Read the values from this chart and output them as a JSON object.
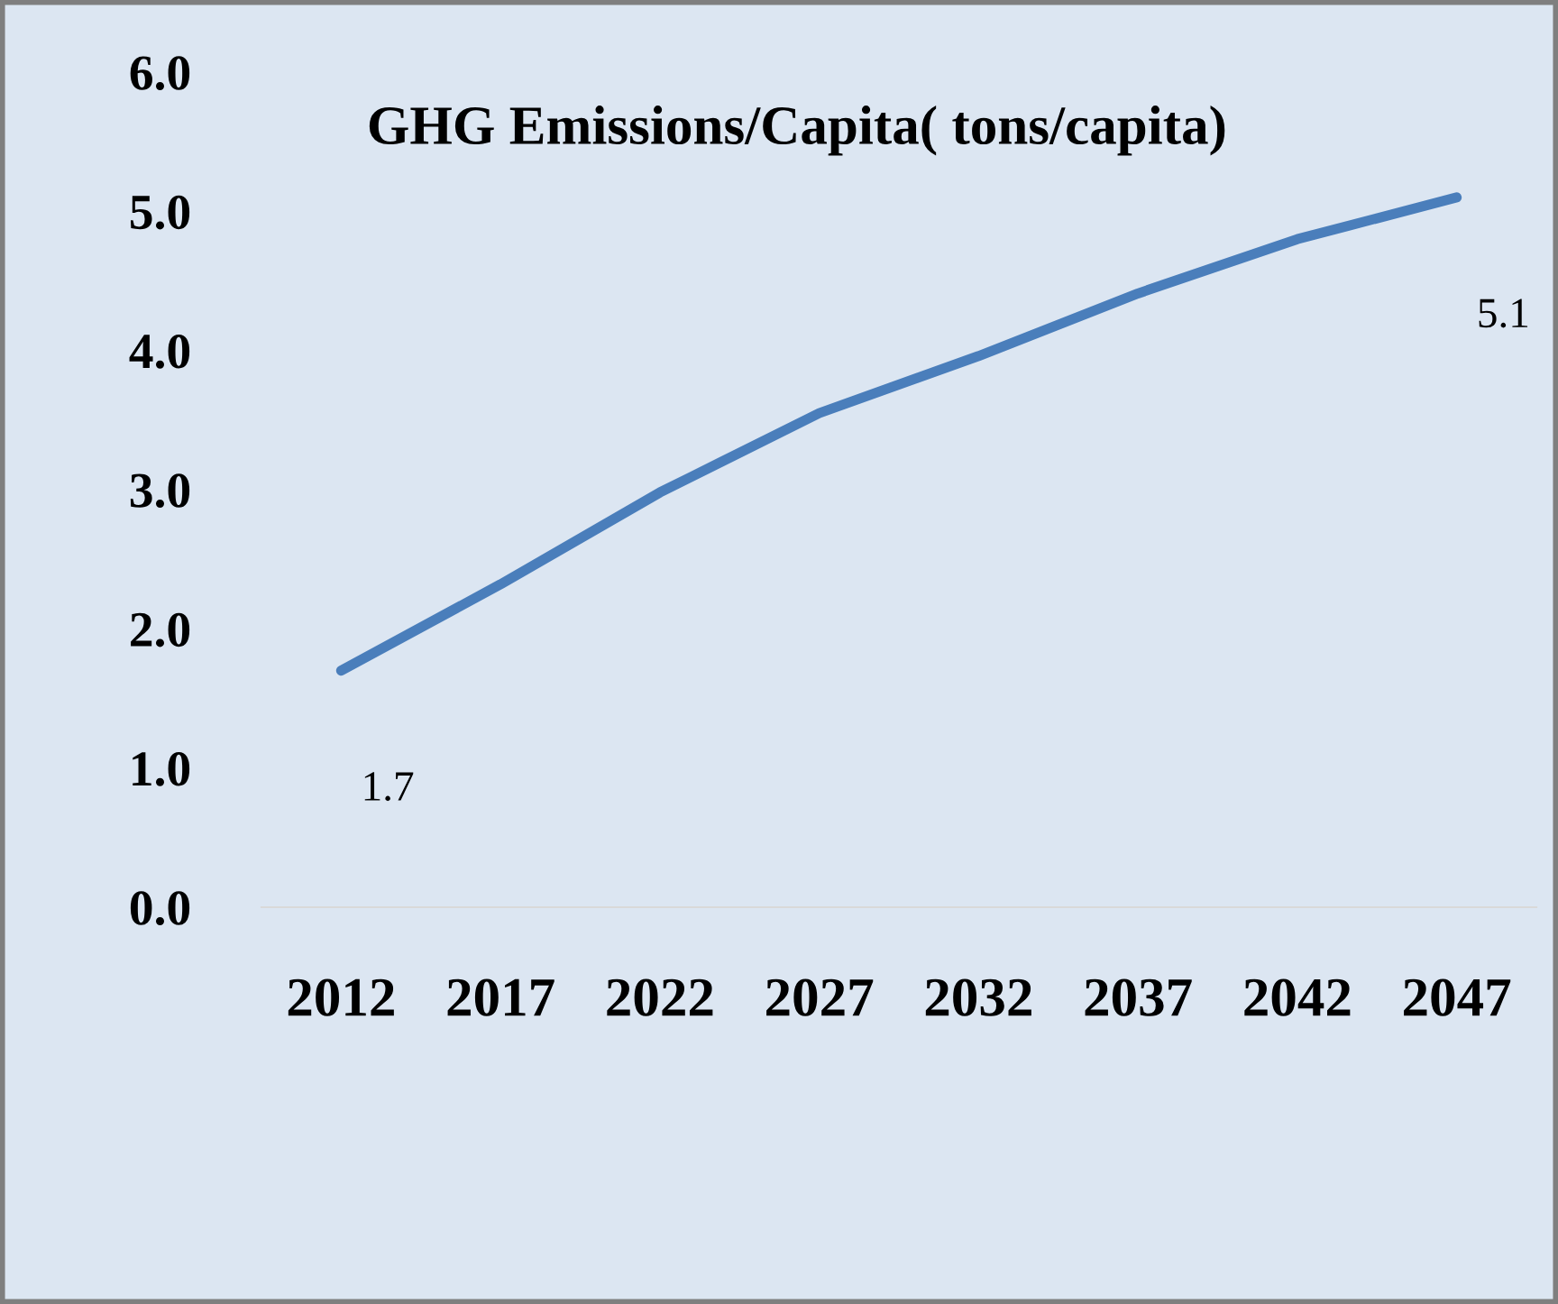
{
  "chart_data": {
    "type": "line",
    "title": "GHG Emissions/Capita( tons/capita)",
    "categories": [
      "2012",
      "2017",
      "2022",
      "2027",
      "2032",
      "2037",
      "2042",
      "2047"
    ],
    "series": [
      {
        "color": "#4a7ebb",
        "values": [
          1.7,
          2.32,
          2.98,
          3.55,
          3.96,
          4.41,
          4.8,
          5.1
        ],
        "value_labels": [
          "1.7",
          null,
          null,
          null,
          null,
          null,
          null,
          "5.1"
        ]
      }
    ],
    "ylim": [
      0,
      6
    ],
    "yticks": [
      {
        "value": 0,
        "label": "0.0"
      },
      {
        "value": 1,
        "label": "1.0"
      },
      {
        "value": 2,
        "label": "2.0"
      },
      {
        "value": 3,
        "label": "3.0"
      },
      {
        "value": 4,
        "label": "4.0"
      },
      {
        "value": 5,
        "label": "5.0"
      },
      {
        "value": 6,
        "label": "6.0"
      }
    ],
    "grid": false,
    "legend": false,
    "marker": "none",
    "line_style": "solid"
  }
}
